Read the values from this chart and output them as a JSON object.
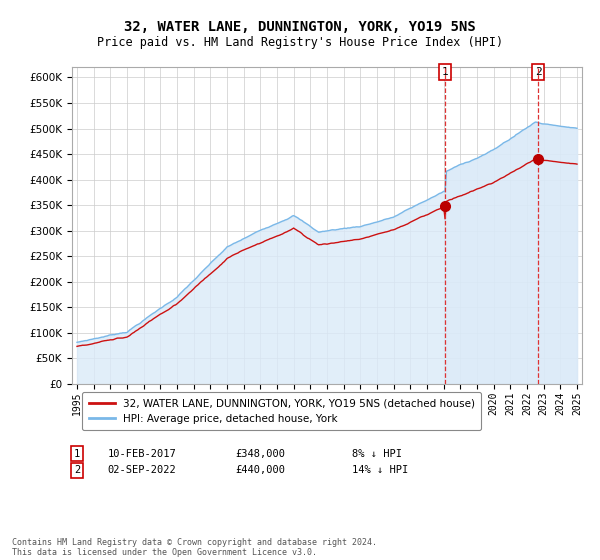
{
  "title": "32, WATER LANE, DUNNINGTON, YORK, YO19 5NS",
  "subtitle": "Price paid vs. HM Land Registry's House Price Index (HPI)",
  "title_fontsize": 10,
  "subtitle_fontsize": 8.5,
  "ylim": [
    0,
    620000
  ],
  "yticks": [
    0,
    50000,
    100000,
    150000,
    200000,
    250000,
    300000,
    350000,
    400000,
    450000,
    500000,
    550000,
    600000
  ],
  "hpi_color": "#7ab8e8",
  "hpi_fill_color": "#daeaf8",
  "price_color": "#cc1111",
  "marker_color": "#bb0000",
  "vline_color": "#dd3333",
  "annotation_box_color": "#cc0000",
  "background_color": "#ffffff",
  "grid_color": "#cccccc",
  "legend_label_price": "32, WATER LANE, DUNNINGTON, YORK, YO19 5NS (detached house)",
  "legend_label_hpi": "HPI: Average price, detached house, York",
  "sale1_date": 2017.1,
  "sale1_price": 348000,
  "sale1_label": "10-FEB-2017",
  "sale1_price_label": "£348,000",
  "sale1_pct": "8% ↓ HPI",
  "sale2_date": 2022.67,
  "sale2_price": 440000,
  "sale2_label": "02-SEP-2022",
  "sale2_price_label": "£440,000",
  "sale2_pct": "14% ↓ HPI",
  "footnote": "Contains HM Land Registry data © Crown copyright and database right 2024.\nThis data is licensed under the Open Government Licence v3.0."
}
